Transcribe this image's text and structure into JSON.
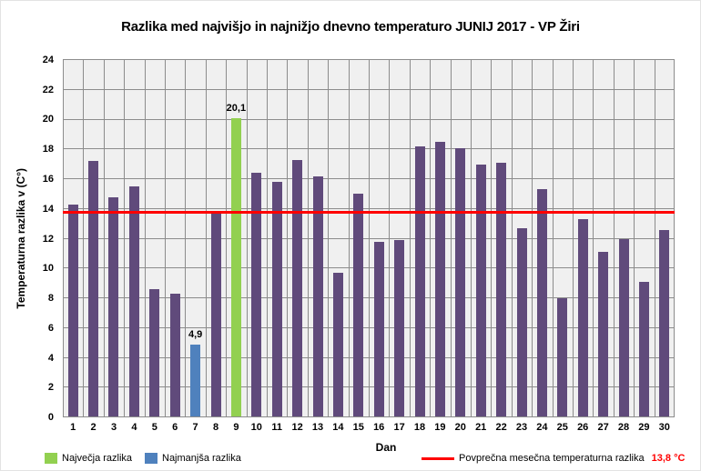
{
  "title": "Razlika med najvišjo in najnižjo dnevno temperaturo JUNIJ 2017 - VP Žiri",
  "chart_data": {
    "type": "bar",
    "title": "Razlika med najvišjo in najnižjo dnevno temperaturo JUNIJ 2017 - VP Žiri",
    "xlabel": "Dan",
    "ylabel": "Temperaturna razlika v (C°)",
    "ylim": [
      0,
      24
    ],
    "ytick_step": 2,
    "grid": true,
    "legend_position": "bottom",
    "categories": [
      1,
      2,
      3,
      4,
      5,
      6,
      7,
      8,
      9,
      10,
      11,
      12,
      13,
      14,
      15,
      16,
      17,
      18,
      19,
      20,
      21,
      22,
      23,
      24,
      25,
      26,
      27,
      28,
      29,
      30
    ],
    "values": [
      14.3,
      17.2,
      14.8,
      15.5,
      8.6,
      8.3,
      4.9,
      13.8,
      20.1,
      16.4,
      15.8,
      17.3,
      16.2,
      9.7,
      15.0,
      11.8,
      11.9,
      18.2,
      18.5,
      18.1,
      17.0,
      17.1,
      12.7,
      15.3,
      8.0,
      13.3,
      11.1,
      12.0,
      9.1,
      12.6
    ],
    "max_bar": {
      "day": 9,
      "value": 20.1,
      "value_label": "20,1"
    },
    "min_bar": {
      "day": 7,
      "value": 4.9,
      "value_label": "4,9"
    },
    "average_line": {
      "value": 13.8,
      "value_label": "13,8 °C"
    }
  },
  "legend": {
    "max_label": "Največja razlika",
    "min_label": "Najmanjša razlika",
    "avg_label": "Povprečna mesečna temperaturna razlika",
    "avg_value": "13,8 °C"
  },
  "colors": {
    "bar_default": "#604A7B",
    "bar_max": "#92D050",
    "bar_min": "#4F81BD",
    "average_line": "#FF0000",
    "plot_bg": "#F0F0F0",
    "gridline": "#8C8C8C",
    "text": "#000000"
  }
}
